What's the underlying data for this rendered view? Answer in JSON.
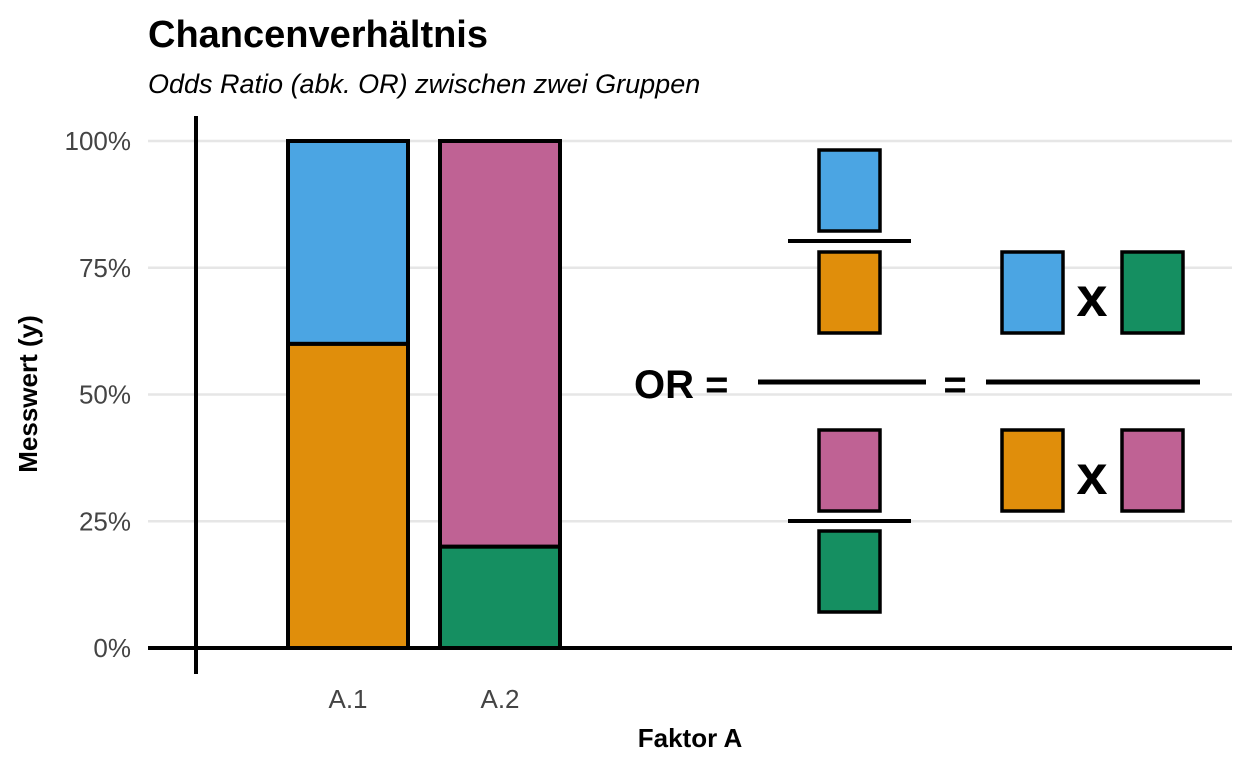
{
  "colors": {
    "orange": "#E08E0B",
    "blue": "#4BA5E3",
    "purple": "#BF6294",
    "green": "#158F61",
    "grid": "#E6E6E6"
  },
  "chart_data": {
    "type": "bar",
    "stacked": true,
    "title": "Chancenverhältnis",
    "subtitle": "Odds Ratio (abk. OR) zwischen zwei Gruppen",
    "xlabel": "Faktor A",
    "ylabel": "Messwert (y)",
    "categories": [
      "A.1",
      "A.2"
    ],
    "ylim": [
      0,
      1
    ],
    "yticks": [
      0,
      0.25,
      0.5,
      0.75,
      1
    ],
    "ytick_labels": [
      "0%",
      "25%",
      "50%",
      "75%",
      "100%"
    ],
    "grid": "horizontal",
    "series": [
      {
        "segments": [
          {
            "value": 0.6,
            "color": "orange"
          },
          {
            "value": 0.4,
            "color": "blue"
          }
        ]
      },
      {
        "segments": [
          {
            "value": 0.2,
            "color": "green"
          },
          {
            "value": 0.8,
            "color": "purple"
          }
        ]
      }
    ],
    "formula": {
      "lhs": "OR =",
      "equals": "=",
      "times": "x",
      "left_fraction": {
        "top": {
          "numerator": "blue",
          "denominator": "orange"
        },
        "bottom": {
          "numerator": "purple",
          "denominator": "green"
        }
      },
      "right_fraction": {
        "numerator": [
          "blue",
          "green"
        ],
        "denominator": [
          "orange",
          "purple"
        ]
      }
    }
  }
}
